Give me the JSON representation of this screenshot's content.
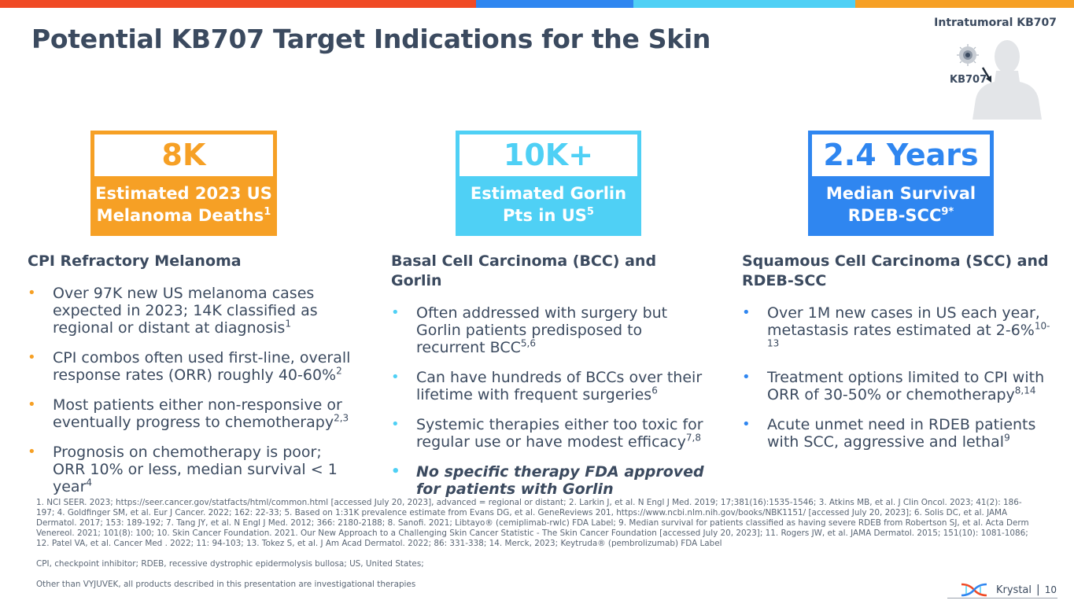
{
  "colors": {
    "orange": "#f6a025",
    "red": "#f04a25",
    "blue": "#2f86f0",
    "cyan": "#4fd0f5",
    "title": "#3b4a5f"
  },
  "header": {
    "title": "Potential KB707 Target Indications for the Skin",
    "badge_label": "Intratumoral KB707",
    "kb_label": "KB707"
  },
  "stats": [
    {
      "value": "8K",
      "line1": "Estimated 2023 US",
      "line2": "Melanoma Deaths",
      "sup": "1"
    },
    {
      "value": "10K+",
      "line1": "Estimated Gorlin",
      "line2": "Pts in US",
      "sup": "5"
    },
    {
      "value": "2.4 Years",
      "line1": "Median Survival",
      "line2": "RDEB-SCC",
      "sup": "9*"
    }
  ],
  "columns": [
    {
      "heading": "CPI Refractory Melanoma",
      "bullets": [
        {
          "text": "Over 97K new US melanoma cases expected in 2023; 14K classified as regional or distant at diagnosis",
          "sup": "1"
        },
        {
          "text": "CPI combos often used first-line, overall response rates (ORR) roughly 40-60%",
          "sup": "2"
        },
        {
          "text": "Most patients either non-responsive or eventually progress to chemotherapy",
          "sup": "2,3"
        },
        {
          "text": "Prognosis on chemotherapy is poor; ORR 10% or less, median survival < 1 year",
          "sup": "4"
        }
      ]
    },
    {
      "heading": "Basal Cell Carcinoma (BCC) and Gorlin",
      "bullets": [
        {
          "text": "Often addressed with surgery but Gorlin patients predisposed to recurrent BCC",
          "sup": "5,6"
        },
        {
          "text": "Can have hundreds of BCCs over their lifetime with frequent surgeries",
          "sup": "6"
        },
        {
          "text": "Systemic therapies either too toxic for regular use or have modest efficacy",
          "sup": "7,8"
        },
        {
          "text": "No specific therapy FDA approved for patients with Gorlin",
          "sup": ""
        }
      ]
    },
    {
      "heading": "Squamous Cell Carcinoma (SCC) and RDEB-SCC",
      "bullets": [
        {
          "text": "Over 1M new cases in US each year, metastasis rates estimated at 2-6%",
          "sup": "10-13"
        },
        {
          "text": " Treatment options limited to CPI with ORR of 30-50% or chemotherapy",
          "sup": "8,14"
        },
        {
          "text": "Acute unmet need in RDEB patients with SCC, aggressive and lethal",
          "sup": "9"
        }
      ]
    }
  ],
  "references": {
    "citations": "1. NCI SEER. 2023; https://seer.cancer.gov/statfacts/html/common.html [accessed July 20, 2023], advanced = regional or distant; 2. Larkin J, et al. N Engl J Med. 2019; 17;381(16):1535-1546; 3. Atkins MB, et al. J Clin Oncol. 2023; 41(2): 186-197; 4. Goldfinger SM, et al. Eur J Cancer. 2022; 162: 22-33; 5. Based on 1:31K prevalence estimate from Evans DG, et al. GeneReviews 201, https://www.ncbi.nlm.nih.gov/books/NBK1151/ [accessed July 20, 2023]; 6. Solis DC, et al. JAMA Dermatol. 2017; 153: 189-192; 7. Tang JY, et al. N Engl J Med. 2012; 366: 2180-2188; 8. Sanofi. 2021; Libtayo® (cemiplimab-rwlc) FDA Label; 9. Median survival for patients classified as having severe RDEB from Robertson SJ, et al. Acta Derm Venereol. 2021; 101(8): 100; 10. Skin Cancer Foundation. 2021. Our New Approach to a Challenging Skin Cancer Statistic - The Skin Cancer Foundation [accessed July 20, 2023]; 11. Rogers JW, et al. JAMA Dermatol. 2015; 151(10): 1081-1086; 12. Patel VA, et al. Cancer Med . 2022; 11: 94-103; 13. Tokez S, et al. J Am Acad Dermatol. 2022; 86: 331-338; 14. Merck, 2023; Keytruda® (pembrolizumab) FDA Label",
    "abbreviations": "CPI, checkpoint inhibitor; RDEB, recessive dystrophic epidermolysis bullosa; US, United States;",
    "disclaimer": "Other than VYJUVEK, all products described in this presentation are investigational therapies"
  },
  "footer": {
    "brand": "Krystal",
    "separator": "|",
    "page_number": "10"
  }
}
